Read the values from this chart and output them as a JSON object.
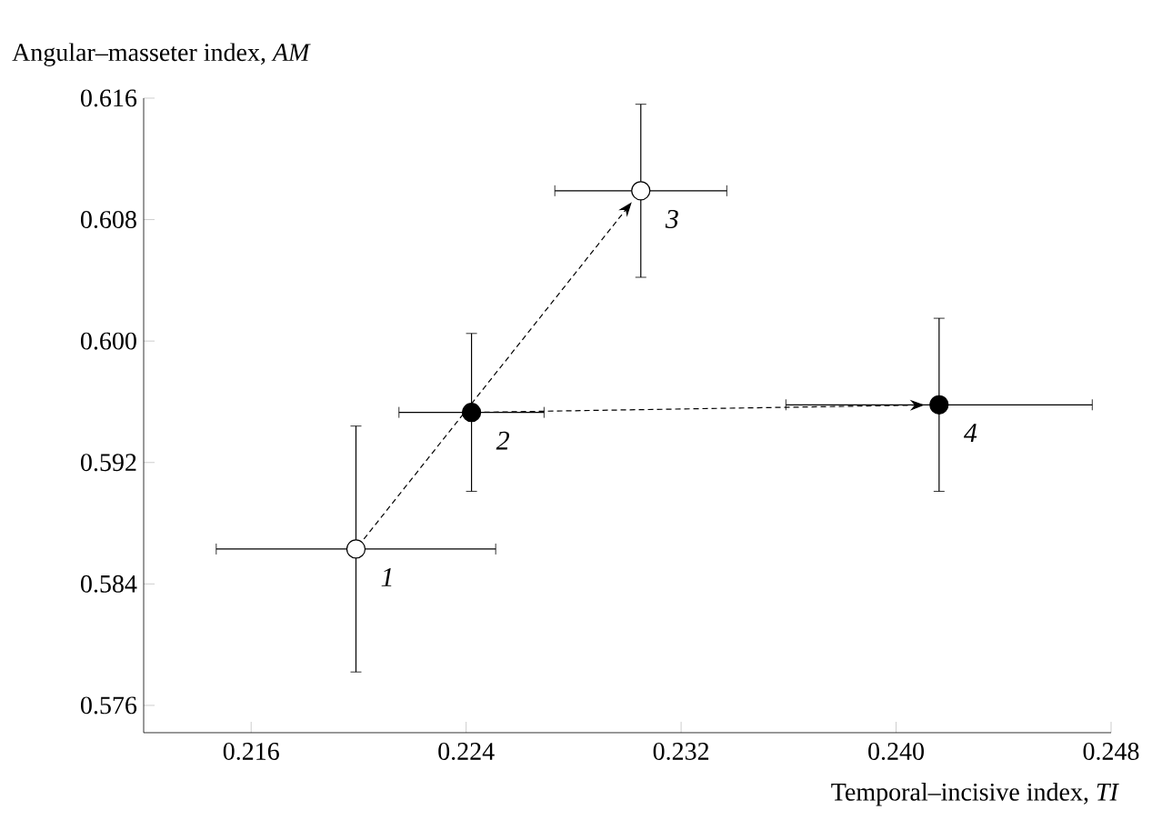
{
  "chart_data": {
    "type": "scatter",
    "xlabel": "Temporal–incisive index, *TI*",
    "ylabel": "Angular–masseter index, *AM*",
    "xlim": [
      0.212,
      0.248
    ],
    "ylim": [
      0.5742,
      0.616
    ],
    "xticks": [
      0.216,
      0.224,
      0.232,
      {
        "value": 0.24,
        "label": "0.240"
      },
      0.248
    ],
    "yticks": [
      0.576,
      0.584,
      0.592,
      {
        "value": 0.6,
        "label": "0.600"
      },
      0.608,
      0.616
    ],
    "marker": "circle",
    "series": [
      {
        "color": "#ffffff",
        "x": [
          0.2199,
          0.2305
        ],
        "values": [
          0.5863,
          0.6099
        ],
        "xerrors": [
          0.0052,
          0.0032
        ],
        "errors": [
          0.0081,
          0.0057
        ]
      },
      {
        "color": "#000000",
        "x": [
          0.2242,
          0.2416
        ],
        "values": [
          0.5953,
          0.5958
        ],
        "xerrors": [
          0.0027,
          0.0057
        ],
        "errors": [
          0.0052,
          0.0057
        ]
      }
    ],
    "annotations": [
      {
        "text": "1",
        "x": 0.2199,
        "y": 0.5863
      },
      {
        "text": "2",
        "x": 0.2242,
        "y": 0.5953
      },
      {
        "text": "3",
        "x": 0.2305,
        "y": 0.6099
      },
      {
        "text": "4",
        "x": 0.2416,
        "y": 0.5958
      }
    ]
  }
}
